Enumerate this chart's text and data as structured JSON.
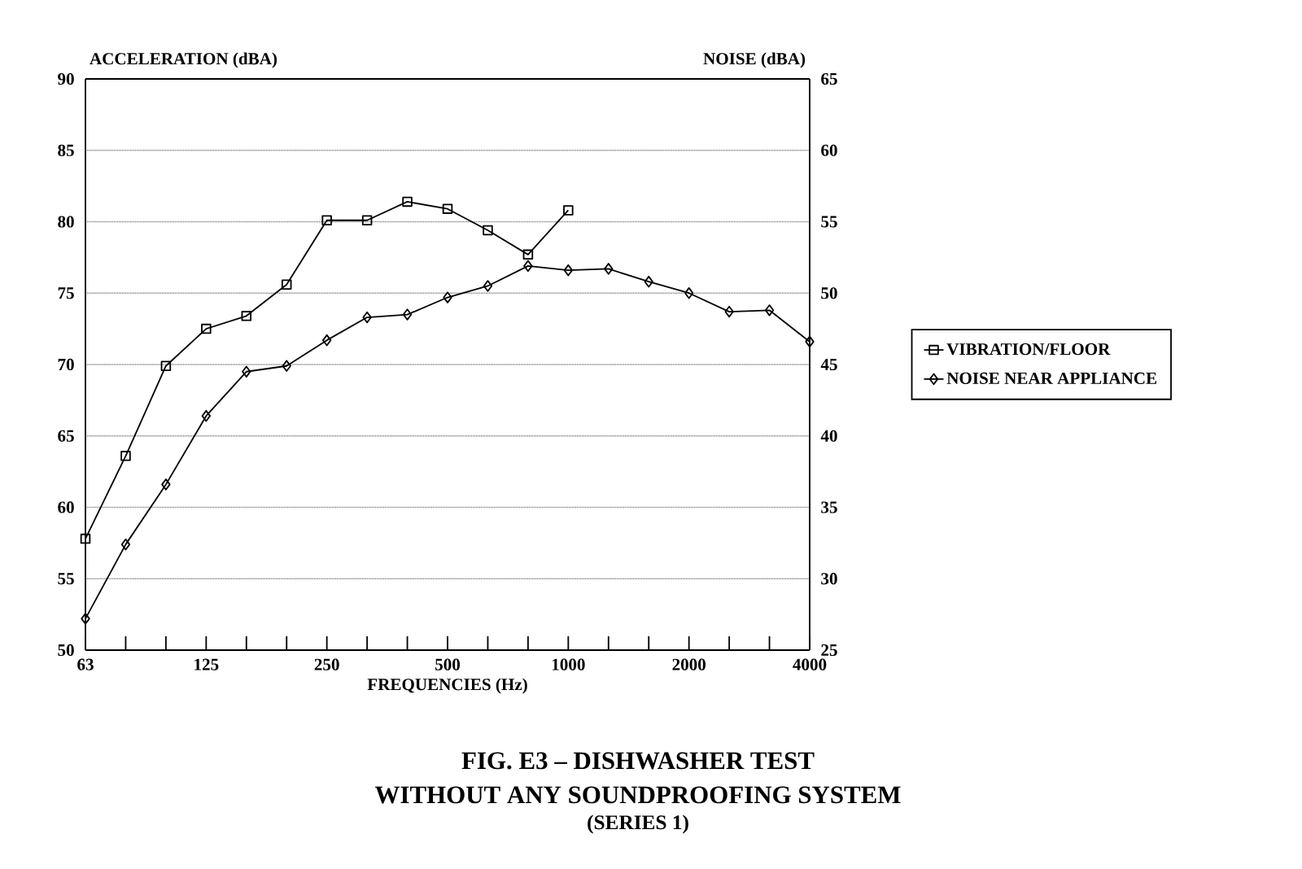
{
  "chart_data": {
    "type": "line",
    "title": "FIG. E3 – DISHWASHER TEST",
    "subtitle": "WITHOUT ANY SOUNDPROOFING SYSTEM",
    "annotations": [
      "(SERIES 1)"
    ],
    "xlabel": "FREQUENCIES (Hz)",
    "ylabel": "ACCELERATION (dBA)",
    "y2label": "NOISE (dBA)",
    "categories": [
      "63",
      null,
      null,
      "125",
      null,
      null,
      "250",
      null,
      null,
      "500",
      null,
      null,
      "1000",
      null,
      null,
      "2000",
      null,
      null,
      "4000"
    ],
    "series": [
      {
        "name": "VIBRATION/FLOOR",
        "color": "#000000",
        "marker": "square",
        "values": [
          57.8,
          63.6,
          69.9,
          72.5,
          73.4,
          75.6,
          80.1,
          80.1,
          81.4,
          80.9,
          79.4,
          77.7,
          80.8,
          null,
          null,
          null,
          null,
          null,
          null
        ]
      },
      {
        "name": "NOISE NEAR APPLIANCE",
        "color": "#000000",
        "marker": "diamond",
        "axis": "y2",
        "values": [
          27.2,
          32.4,
          36.6,
          41.4,
          44.5,
          44.9,
          46.7,
          48.3,
          48.5,
          49.7,
          50.5,
          51.9,
          51.6,
          51.7,
          50.8,
          50.0,
          48.7,
          48.8,
          46.6
        ]
      }
    ],
    "ylim": [
      50,
      90
    ],
    "yticks": [
      50,
      55,
      60,
      65,
      70,
      75,
      80,
      85,
      90
    ],
    "y2lim": [
      25,
      65
    ],
    "y2ticks": [
      25,
      30,
      35,
      40,
      45,
      50,
      55,
      60,
      65
    ],
    "grid": "y",
    "legend": "right",
    "line_style": "solid"
  }
}
